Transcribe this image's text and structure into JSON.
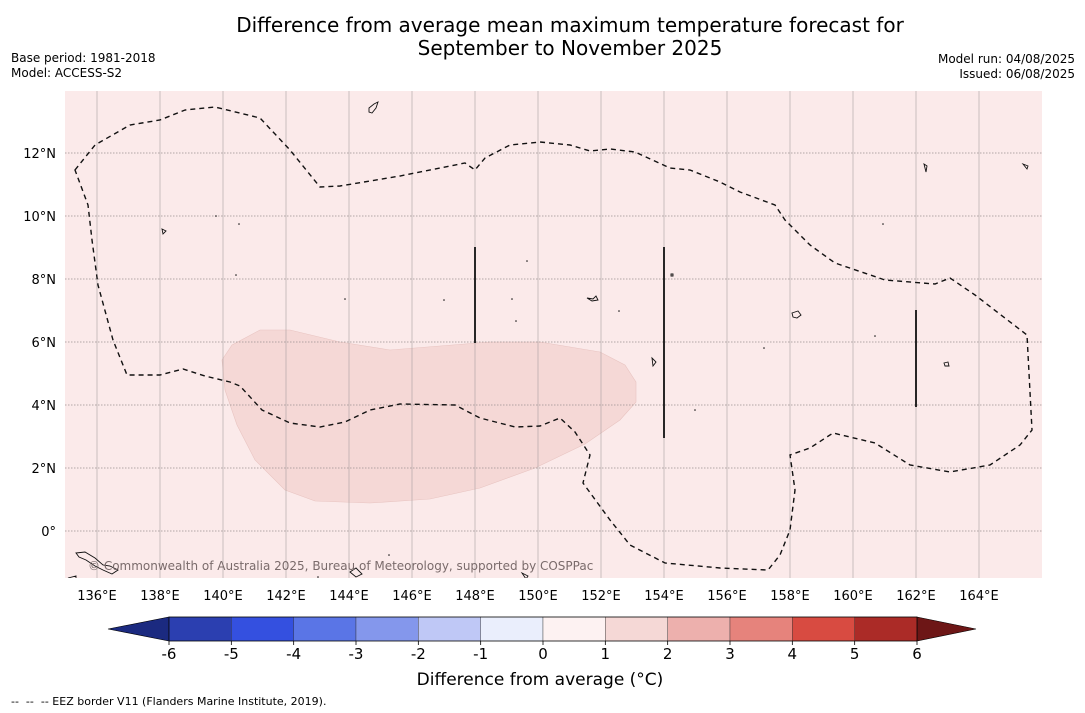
{
  "title": {
    "line1": "Difference from average mean maximum temperature forecast for",
    "line2": "September to November 2025"
  },
  "meta": {
    "base_period": "Base period: 1981-2018",
    "model": "Model: ACCESS-S2",
    "model_run": "Model run: 04/08/2025",
    "issued": "Issued: 06/08/2025"
  },
  "map": {
    "background_color": "#fbeaea",
    "anomaly_color": "#f5d8d6",
    "copyright": "© Commonwealth of Australia 2025, Bureau of Meteorology, supported by COSPPac",
    "lon_labels": [
      "136°E",
      "138°E",
      "140°E",
      "142°E",
      "144°E",
      "146°E",
      "148°E",
      "150°E",
      "152°E",
      "154°E",
      "156°E",
      "158°E",
      "160°E",
      "162°E",
      "164°E"
    ],
    "lat_labels": [
      "12°N",
      "10°N",
      "8°N",
      "6°N",
      "4°N",
      "2°N",
      "0°"
    ],
    "grid": true
  },
  "colorbar": {
    "title": "Difference from average (°C)",
    "ticks": [
      "-6",
      "-5",
      "-4",
      "-3",
      "-2",
      "-1",
      "0",
      "1",
      "2",
      "3",
      "4",
      "5",
      "6"
    ],
    "low_extend_color": "#1b2a80",
    "high_extend_color": "#6d1616",
    "colors": [
      "#2b3fb0",
      "#3450e0",
      "#5a75e6",
      "#8497ec",
      "#bfc8f6",
      "#eaeefc",
      "#fdf2f2",
      "#f5d8d6",
      "#edb0ad",
      "#e6837c",
      "#d84b41",
      "#ab2b27"
    ]
  },
  "legend_note": "--  --  -- EEZ border V11 (Flanders Marine Institute, 2019)."
}
